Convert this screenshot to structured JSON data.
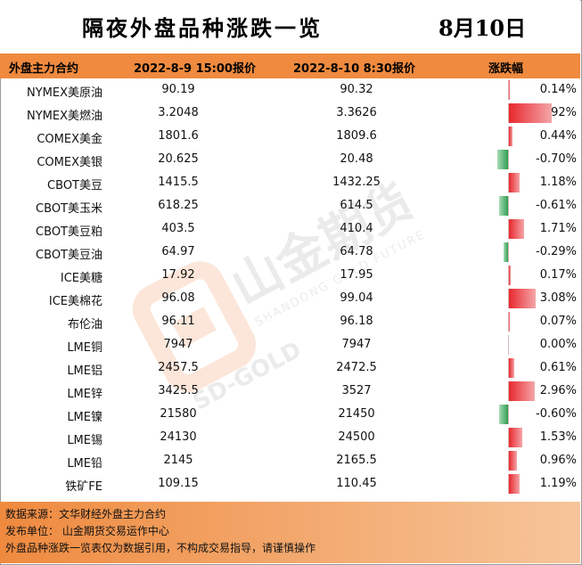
{
  "title": "隔夜外盘品种涨跌一览",
  "date": "8月10日",
  "columns": {
    "name": "外盘主力合约",
    "price1": "2022-8-9 15:00报价",
    "price2": "2022-8-10 8:30报价",
    "change": "涨跌幅"
  },
  "rows": [
    {
      "name": "NYMEX美原油",
      "p1": "90.19",
      "p2": "90.32",
      "pct": "0.14%",
      "change": 0.14
    },
    {
      "name": "NYMEX美燃油",
      "p1": "3.2048",
      "p2": "3.3626",
      "pct": "4.92%",
      "change": 4.92
    },
    {
      "name": "COMEX美金",
      "p1": "1801.6",
      "p2": "1809.6",
      "pct": "0.44%",
      "change": 0.44
    },
    {
      "name": "COMEX美银",
      "p1": "20.625",
      "p2": "20.48",
      "pct": "-0.70%",
      "change": -0.7
    },
    {
      "name": "CBOT美豆",
      "p1": "1415.5",
      "p2": "1432.25",
      "pct": "1.18%",
      "change": 1.18
    },
    {
      "name": "CBOT美玉米",
      "p1": "618.25",
      "p2": "614.5",
      "pct": "-0.61%",
      "change": -0.61
    },
    {
      "name": "CBOT美豆粕",
      "p1": "403.5",
      "p2": "410.4",
      "pct": "1.71%",
      "change": 1.71
    },
    {
      "name": "CBOT美豆油",
      "p1": "64.97",
      "p2": "64.78",
      "pct": "-0.29%",
      "change": -0.29
    },
    {
      "name": "ICE美糖",
      "p1": "17.92",
      "p2": "17.95",
      "pct": "0.17%",
      "change": 0.17
    },
    {
      "name": "ICE美棉花",
      "p1": "96.08",
      "p2": "99.04",
      "pct": "3.08%",
      "change": 3.08
    },
    {
      "name": "布伦油",
      "p1": "96.11",
      "p2": "96.18",
      "pct": "0.07%",
      "change": 0.07
    },
    {
      "name": "LME铜",
      "p1": "7947",
      "p2": "7947",
      "pct": "0.00%",
      "change": 0.0
    },
    {
      "name": "LME铝",
      "p1": "2457.5",
      "p2": "2472.5",
      "pct": "0.61%",
      "change": 0.61
    },
    {
      "name": "LME锌",
      "p1": "3425.5",
      "p2": "3527",
      "pct": "2.96%",
      "change": 2.96
    },
    {
      "name": "LME镍",
      "p1": "21580",
      "p2": "21450",
      "pct": "-0.60%",
      "change": -0.6
    },
    {
      "name": "LME锡",
      "p1": "24130",
      "p2": "24500",
      "pct": "1.53%",
      "change": 1.53
    },
    {
      "name": "LME铅",
      "p1": "2145",
      "p2": "2165.5",
      "pct": "0.96%",
      "change": 0.96
    },
    {
      "name": "铁矿FE",
      "p1": "109.15",
      "p2": "110.45",
      "pct": "1.19%",
      "change": 1.19
    }
  ],
  "colors": {
    "header": "#ef8a3f",
    "positive": "#e8282f",
    "negative": "#2f9e52"
  },
  "watermark": {
    "brand": "山金期货",
    "en": "SHANDONG GOLD FUTURES",
    "mark": "SD-GOLD"
  },
  "footer": {
    "source": "数据来源：文华财经外盘主力合约",
    "publisher": "发布单位：  山金期货交易运作中心",
    "disclaimer": "外盘品种涨跌一览表仅为数据引用，不构成交易指导，请谨慎操作"
  }
}
